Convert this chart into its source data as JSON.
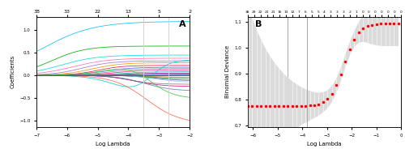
{
  "panel_A": {
    "title_label": "A",
    "xlabel": "Log Lambda",
    "ylabel": "Coefficients",
    "top_ticks": [
      38,
      33,
      22,
      13,
      5,
      2
    ],
    "xlim": [
      -7,
      -2.0
    ],
    "ylim": [
      -1.15,
      1.3
    ],
    "vlines": [
      -3.5,
      -2.7
    ],
    "n_lines": 38
  },
  "panel_B": {
    "title_label": "B",
    "xlabel": "Log Lambda",
    "ylabel": "Binomial Deviance",
    "top_ticks_labels": [
      "38",
      "29",
      "22",
      "21",
      "21",
      "16",
      "13",
      "12",
      "7",
      "6",
      "5",
      "5",
      "4",
      "3",
      "3",
      "3",
      "2",
      "1",
      "0",
      "0",
      "0",
      "0",
      "0",
      "0",
      "0"
    ],
    "xlim": [
      -6.2,
      -0.1
    ],
    "ylim": [
      0.695,
      1.12
    ],
    "yticks": [
      0.7,
      0.8,
      0.9,
      1.0,
      1.1
    ],
    "vline1": -4.6,
    "vline2": -3.8,
    "dot_color": "#ff0000"
  }
}
